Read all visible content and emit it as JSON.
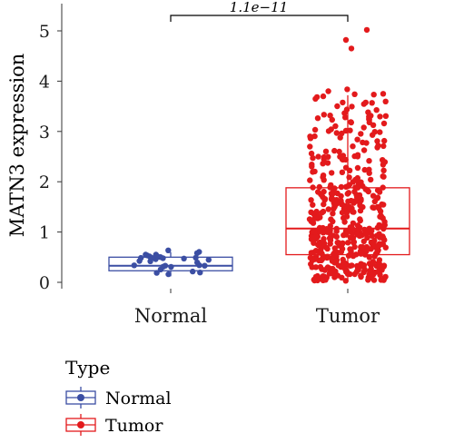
{
  "chart_data": {
    "type": "boxplot",
    "ylabel": "MATN3 expression",
    "xlabel": "",
    "ylim": [
      -0.15,
      5.3
    ],
    "yticks": [
      0,
      1,
      2,
      3,
      4,
      5
    ],
    "categories": [
      "Normal",
      "Tumor"
    ],
    "series": [
      {
        "name": "Normal",
        "color": "#3b4ea3",
        "box": {
          "q1": 0.23,
          "median": 0.33,
          "q3": 0.5,
          "whisker_low": 0.12,
          "whisker_high": 0.6
        },
        "points_approx_count": 30,
        "points_range": [
          0.1,
          0.65
        ]
      },
      {
        "name": "Tumor",
        "color": "#e31a1c",
        "box": {
          "q1": 0.55,
          "median": 1.07,
          "q3": 1.88,
          "whisker_low": 0.05,
          "whisker_high": 3.72
        },
        "outliers": [
          4.82,
          4.65,
          5.02
        ],
        "points_approx_count": 480,
        "points_range": [
          0.03,
          3.85
        ]
      }
    ],
    "comparison": {
      "groups": [
        "Normal",
        "Tumor"
      ],
      "label": "1.1e−11"
    },
    "legend": {
      "title": "Type",
      "position": "bottom-left",
      "entries": [
        {
          "label": "Normal",
          "color": "#3b4ea3"
        },
        {
          "label": "Tumor",
          "color": "#e31a1c"
        }
      ]
    }
  }
}
